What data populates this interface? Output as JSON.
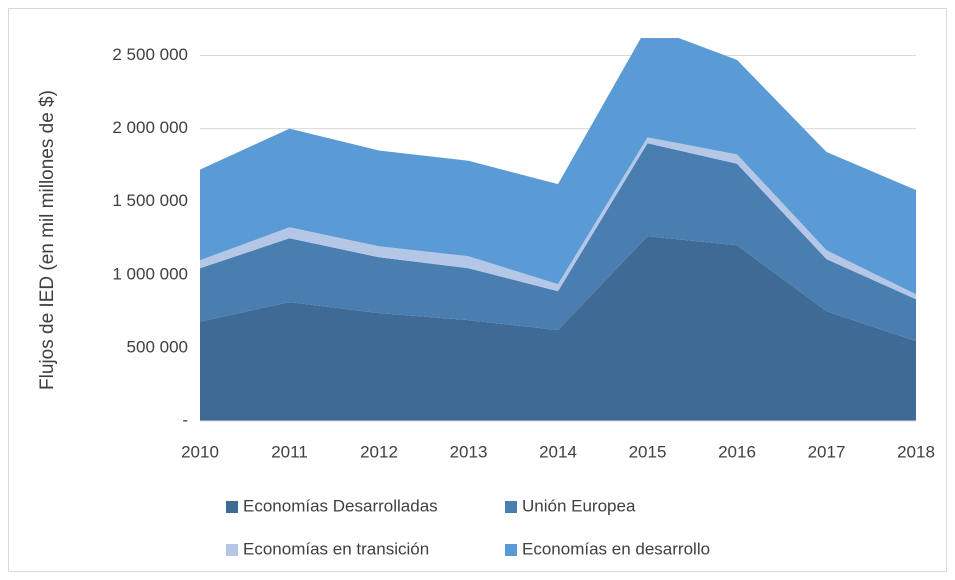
{
  "chart_data": {
    "type": "stacked_area",
    "y_label": "Flujos de IED (en mil millones de $)",
    "categories": [
      "2010",
      "2011",
      "2012",
      "2013",
      "2014",
      "2015",
      "2016",
      "2017",
      "2018"
    ],
    "series": [
      {
        "name": "Economías Desarrolladas",
        "color": "#3f6a96",
        "values": [
          680000,
          813000,
          738000,
          690000,
          622000,
          1264000,
          1202000,
          751000,
          546000
        ]
      },
      {
        "name": "Unión Europea",
        "color": "#4a7db0",
        "values": [
          365000,
          437000,
          382000,
          355000,
          266000,
          636000,
          558000,
          356000,
          287000
        ]
      },
      {
        "name": "Economías en transición",
        "color": "#b4c7e7",
        "values": [
          55000,
          75000,
          75000,
          82000,
          48000,
          40000,
          64000,
          61000,
          34000
        ]
      },
      {
        "name": "Economías en desarrollo",
        "color": "#5b9bd5",
        "values": [
          620000,
          675000,
          655000,
          653000,
          684000,
          760000,
          646000,
          672000,
          713000
        ]
      }
    ],
    "ylim": [
      0,
      2620000
    ],
    "yticks": [
      {
        "value": 0,
        "label": "-"
      },
      {
        "value": 500000,
        "label": "500 000"
      },
      {
        "value": 1000000,
        "label": "1 000 000"
      },
      {
        "value": 1500000,
        "label": "1 500 000"
      },
      {
        "value": 2000000,
        "label": "2 000 000"
      },
      {
        "value": 2500000,
        "label": "2 500 000"
      }
    ],
    "grid": true,
    "legend": "bottom"
  }
}
